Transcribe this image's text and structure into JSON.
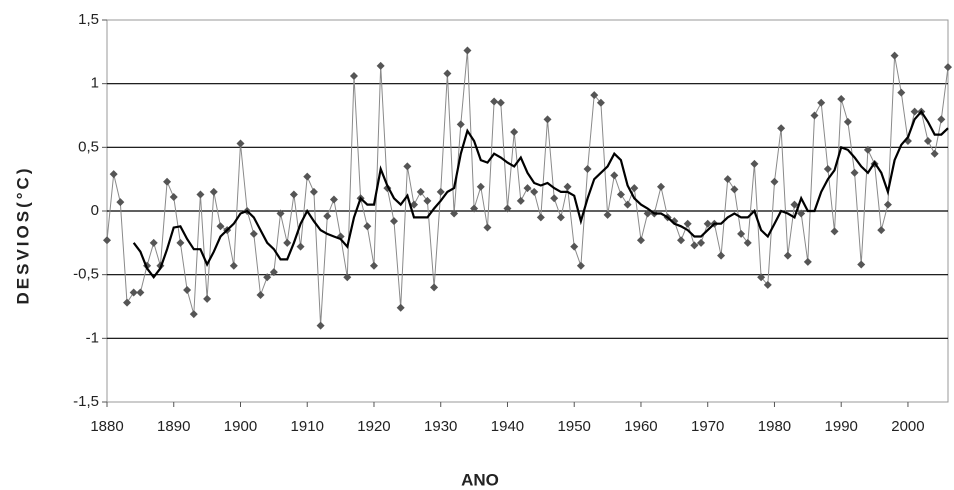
{
  "chart_data": {
    "type": "line",
    "y_label": "DESVIOS(°C)",
    "x_label": "ANO",
    "x": [
      1880,
      1881,
      1882,
      1883,
      1884,
      1885,
      1886,
      1887,
      1888,
      1889,
      1890,
      1891,
      1892,
      1893,
      1894,
      1895,
      1896,
      1897,
      1898,
      1899,
      1900,
      1901,
      1902,
      1903,
      1904,
      1905,
      1906,
      1907,
      1908,
      1909,
      1910,
      1911,
      1912,
      1913,
      1914,
      1915,
      1916,
      1917,
      1918,
      1919,
      1920,
      1921,
      1922,
      1923,
      1924,
      1925,
      1926,
      1927,
      1928,
      1929,
      1930,
      1931,
      1932,
      1933,
      1934,
      1935,
      1936,
      1937,
      1938,
      1939,
      1940,
      1941,
      1942,
      1943,
      1944,
      1945,
      1946,
      1947,
      1948,
      1949,
      1950,
      1951,
      1952,
      1953,
      1954,
      1955,
      1956,
      1957,
      1958,
      1959,
      1960,
      1961,
      1962,
      1963,
      1964,
      1965,
      1966,
      1967,
      1968,
      1969,
      1970,
      1971,
      1972,
      1973,
      1974,
      1975,
      1976,
      1977,
      1978,
      1979,
      1980,
      1981,
      1982,
      1983,
      1984,
      1985,
      1986,
      1987,
      1988,
      1989,
      1990,
      1991,
      1992,
      1993,
      1994,
      1995,
      1996,
      1997,
      1998,
      1999,
      2000,
      2001,
      2002,
      2003,
      2004,
      2005,
      2006
    ],
    "series": [
      {
        "color": "#8a8a8a",
        "marker": "diamond",
        "marker_color": "#555555",
        "values": [
          -0.23,
          0.29,
          0.07,
          -0.72,
          -0.64,
          -0.64,
          -0.43,
          -0.25,
          -0.43,
          0.23,
          0.11,
          -0.25,
          -0.62,
          -0.81,
          0.13,
          -0.69,
          0.15,
          -0.12,
          -0.15,
          -0.43,
          0.53,
          0.0,
          -0.18,
          -0.66,
          -0.52,
          -0.48,
          -0.02,
          -0.25,
          0.13,
          -0.28,
          0.27,
          0.15,
          -0.9,
          -0.04,
          0.09,
          -0.2,
          -0.52,
          1.06,
          0.1,
          -0.12,
          -0.43,
          1.14,
          0.18,
          -0.08,
          -0.76,
          0.35,
          0.05,
          0.15,
          0.08,
          -0.6,
          0.15,
          1.08,
          -0.02,
          0.68,
          1.26,
          0.02,
          0.19,
          -0.13,
          0.86,
          0.85,
          0.02,
          0.62,
          0.08,
          0.18,
          0.15,
          -0.05,
          0.72,
          0.1,
          -0.05,
          0.19,
          -0.28,
          -0.43,
          0.33,
          0.91,
          0.85,
          -0.03,
          0.28,
          0.13,
          0.05,
          0.18,
          -0.23,
          -0.02,
          -0.02,
          0.19,
          -0.05,
          -0.08,
          -0.23,
          -0.1,
          -0.27,
          -0.25,
          -0.1,
          -0.1,
          -0.35,
          0.25,
          0.17,
          -0.18,
          -0.25,
          0.37,
          -0.52,
          -0.58,
          0.23,
          0.65,
          -0.35,
          0.05,
          -0.02,
          -0.4,
          0.75,
          0.85,
          0.33,
          -0.16,
          0.88,
          0.7,
          0.3,
          -0.42,
          0.48,
          0.37,
          -0.15,
          0.05,
          1.22,
          0.93,
          0.55,
          0.78,
          0.78,
          0.55,
          0.45,
          0.72,
          1.13
        ]
      },
      {
        "color": "#000000",
        "values": [
          null,
          null,
          null,
          null,
          -0.25,
          -0.32,
          -0.45,
          -0.52,
          -0.45,
          -0.3,
          -0.13,
          -0.12,
          -0.22,
          -0.3,
          -0.3,
          -0.42,
          -0.32,
          -0.2,
          -0.15,
          -0.1,
          -0.02,
          0.0,
          -0.05,
          -0.15,
          -0.25,
          -0.3,
          -0.38,
          -0.38,
          -0.25,
          -0.1,
          0.0,
          -0.08,
          -0.15,
          -0.18,
          -0.2,
          -0.22,
          -0.28,
          -0.05,
          0.1,
          0.05,
          0.05,
          0.33,
          0.2,
          0.1,
          0.05,
          0.12,
          -0.05,
          -0.05,
          -0.05,
          0.02,
          0.08,
          0.15,
          0.18,
          0.45,
          0.63,
          0.55,
          0.4,
          0.38,
          0.45,
          0.42,
          0.38,
          0.35,
          0.42,
          0.3,
          0.22,
          0.2,
          0.22,
          0.18,
          0.15,
          0.15,
          0.12,
          -0.08,
          0.1,
          0.25,
          0.3,
          0.35,
          0.45,
          0.4,
          0.2,
          0.1,
          0.05,
          0.02,
          -0.02,
          -0.02,
          -0.05,
          -0.1,
          -0.12,
          -0.15,
          -0.2,
          -0.2,
          -0.15,
          -0.1,
          -0.1,
          -0.05,
          -0.02,
          -0.05,
          -0.05,
          0.0,
          -0.15,
          -0.2,
          -0.1,
          0.0,
          -0.02,
          -0.05,
          0.1,
          0.0,
          0.0,
          0.15,
          0.25,
          0.32,
          0.5,
          0.48,
          0.42,
          0.35,
          0.3,
          0.38,
          0.3,
          0.15,
          0.4,
          0.52,
          0.58,
          0.72,
          0.78,
          0.7,
          0.6,
          0.6,
          0.65
        ]
      }
    ],
    "xlim": [
      1880,
      2006
    ],
    "xticks": [
      1880,
      1890,
      1900,
      1910,
      1920,
      1930,
      1940,
      1950,
      1960,
      1970,
      1980,
      1990,
      2000
    ],
    "ylim": [
      -1.5,
      1.5
    ],
    "yticks": [
      {
        "value": -1.5,
        "label": "-1,5"
      },
      -1,
      {
        "value": -0.5,
        "label": "-0,5"
      },
      0,
      {
        "value": 0.5,
        "label": "0,5"
      },
      1,
      {
        "value": 1.5,
        "label": "1,5"
      }
    ],
    "grid": true
  }
}
